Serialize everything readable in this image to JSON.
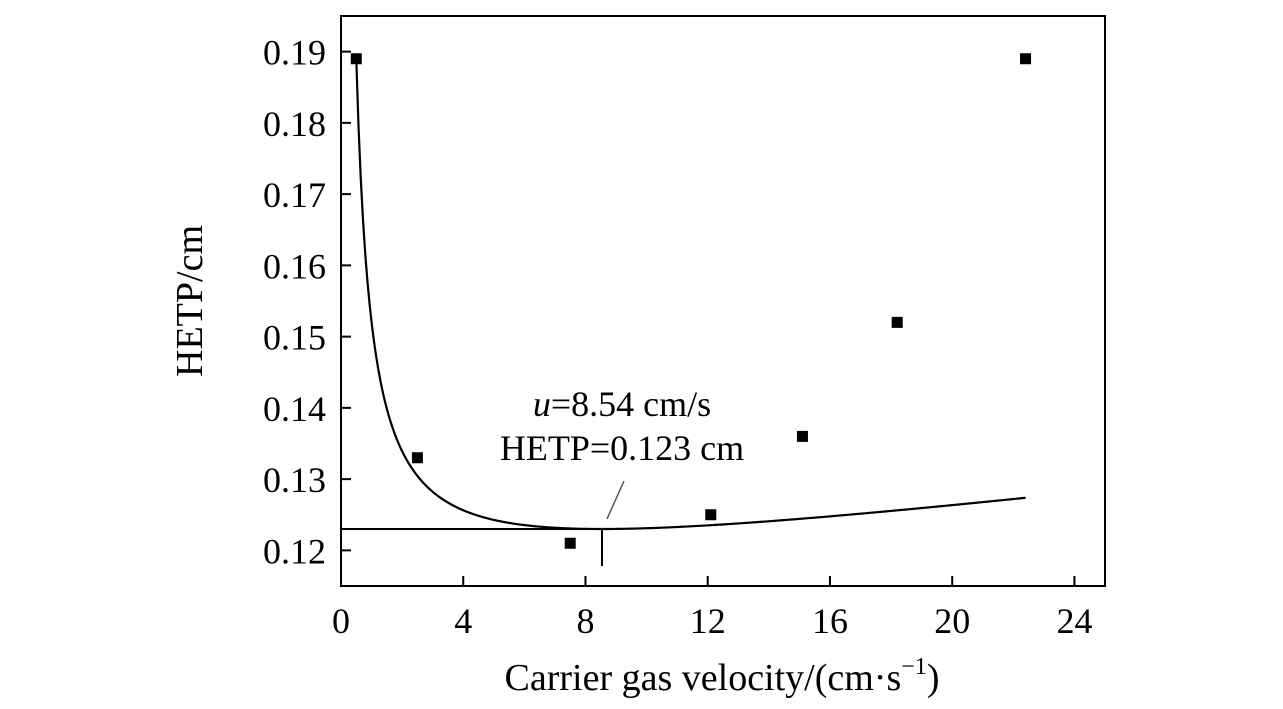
{
  "chart_data": {
    "type": "scatter",
    "xlabel": "Carrier gas velocity/(cm·s",
    "xlabel_sup": "−1",
    "xlabel_close": ")",
    "ylabel": "HETP/cm",
    "xlim": [
      0,
      25
    ],
    "ylim": [
      0.115,
      0.195
    ],
    "x_ticks": [
      0,
      4,
      8,
      12,
      16,
      20,
      24
    ],
    "x_tick_labels": [
      "0",
      "4",
      "8",
      "12",
      "16",
      "20",
      "24"
    ],
    "y_ticks": [
      0.12,
      0.13,
      0.14,
      0.15,
      0.16,
      0.17,
      0.18,
      0.19
    ],
    "y_tick_labels": [
      "0.12",
      "0.13",
      "0.14",
      "0.15",
      "0.16",
      "0.17",
      "0.18",
      "0.19"
    ],
    "grid": false,
    "legend": "none",
    "series": [
      {
        "marker": "square",
        "points": [
          {
            "x": 0.5,
            "y": 0.189
          },
          {
            "x": 2.5,
            "y": 0.133
          },
          {
            "x": 7.5,
            "y": 0.121
          },
          {
            "x": 12.1,
            "y": 0.125
          },
          {
            "x": 15.1,
            "y": 0.136
          },
          {
            "x": 18.2,
            "y": 0.152
          },
          {
            "x": 22.4,
            "y": 0.189
          }
        ]
      }
    ],
    "fit_curve": {
      "type": "van-deemter",
      "x_range": [
        0.5,
        22.4
      ],
      "optimum": {
        "x": 8.54,
        "y": 0.123
      }
    },
    "annotation": {
      "line1_prefix": "u",
      "line1_rest": "=8.54 cm/s",
      "line2": "HETP=0.123 cm"
    },
    "colors": {
      "ink": "#000000",
      "pointer": "#555555"
    }
  }
}
